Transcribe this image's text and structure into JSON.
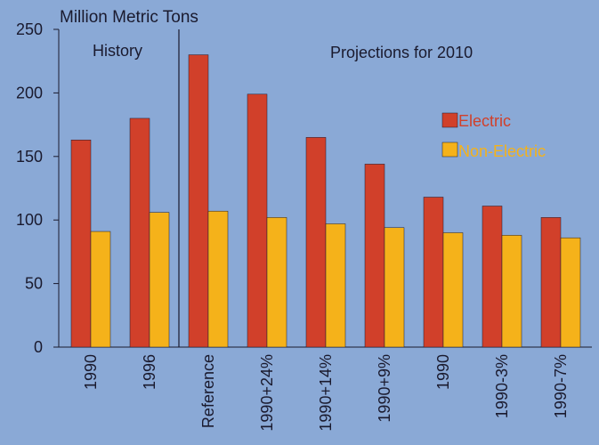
{
  "chart_data": {
    "type": "bar",
    "ylabel": "Million Metric Tons",
    "ylim": [
      0,
      250
    ],
    "yticks": [
      0,
      50,
      100,
      150,
      200,
      250
    ],
    "categories": [
      "1990",
      "1996",
      "Reference",
      "1990+24%",
      "1990+14%",
      "1990+9%",
      "1990",
      "1990-3%",
      "1990-7%"
    ],
    "series": [
      {
        "name": "Electric",
        "color": "#d1402a",
        "values": [
          163,
          180,
          230,
          199,
          165,
          144,
          118,
          111,
          102
        ]
      },
      {
        "name": "Non-Electric",
        "color": "#f5b21a",
        "values": [
          91,
          106,
          107,
          102,
          97,
          94,
          90,
          88,
          86
        ]
      }
    ],
    "annotations": {
      "history": "History",
      "projections": "Projections for 2010"
    },
    "legend_position": "right",
    "grid": false
  }
}
